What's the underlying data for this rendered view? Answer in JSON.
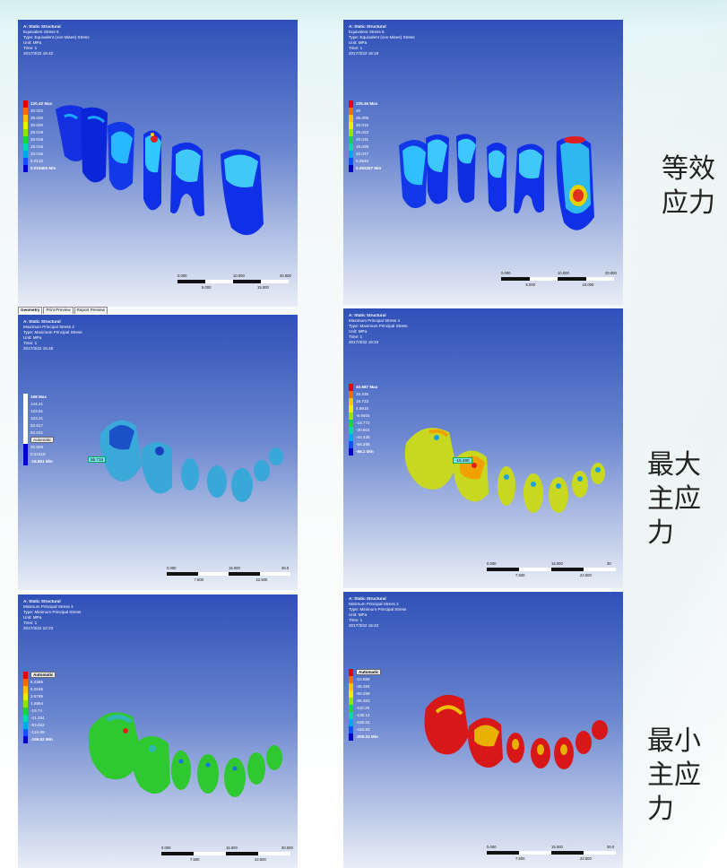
{
  "labels": {
    "row1": [
      "等效",
      "应力"
    ],
    "row2": [
      "最大",
      "主应力"
    ],
    "row3": [
      "最小",
      "主应力"
    ]
  },
  "tabs": [
    "Geometry",
    "Print Preview",
    "Report Preview"
  ],
  "panels": [
    {
      "header": [
        "A: Static Structural",
        "Equivalent Stress 6",
        "Type: Equivalent (von-Mises) Stress",
        "Unit: MPa",
        "Time: 1",
        "2017/3/22 16:42"
      ],
      "legend": [
        {
          "text": "120.42 Max",
          "color": "#e60000"
        },
        {
          "text": "40.022",
          "color": "#ff6a00"
        },
        {
          "text": "35.020",
          "color": "#ffc400"
        },
        {
          "text": "30.020",
          "color": "#e8f000"
        },
        {
          "text": "25.019",
          "color": "#8fe600"
        },
        {
          "text": "20.018",
          "color": "#20d040"
        },
        {
          "text": "15.016",
          "color": "#00d8b0"
        },
        {
          "text": "10.015",
          "color": "#00a8f0"
        },
        {
          "text": "5.0132",
          "color": "#1050ff"
        },
        {
          "text": "0.019400 Min",
          "color": "#0000c8"
        }
      ],
      "scale": [
        "0.000",
        "10.000",
        "20.000",
        "5.000",
        "15.000"
      ]
    },
    {
      "header": [
        "A: Static Structural",
        "Equivalent Stress 6",
        "Type: Equivalent (von-Mises) Stress",
        "Unit: MPa",
        "Time: 1",
        "2017/3/22 16:19"
      ],
      "legend": [
        {
          "text": "225.45 Max",
          "color": "#e60000"
        },
        {
          "text": "40",
          "color": "#ff6a00"
        },
        {
          "text": "35.008",
          "color": "#ffc400"
        },
        {
          "text": "30.016",
          "color": "#e8f000"
        },
        {
          "text": "25.023",
          "color": "#8fe600"
        },
        {
          "text": "20.031",
          "color": "#20d040"
        },
        {
          "text": "15.039",
          "color": "#00d8b0"
        },
        {
          "text": "10.047",
          "color": "#00a8f0"
        },
        {
          "text": "5.0546",
          "color": "#1050ff"
        },
        {
          "text": "0.062287 Min",
          "color": "#0000c8"
        }
      ],
      "scale": [
        "0.000",
        "10.000",
        "20.000",
        "5.000",
        "15.000"
      ]
    },
    {
      "header": [
        "A: Static Structural",
        "Maximum Principal Stress 2",
        "Type: Maximum Principal Stress",
        "Unit: MPa",
        "Time: 1",
        "2017/3/22 15:48"
      ],
      "legend": [
        {
          "text": "168 Max",
          "color": "#ffffff"
        },
        {
          "text": "144.41",
          "color": "#ffffff"
        },
        {
          "text": "123.81",
          "color": "#ffffff"
        },
        {
          "text": "103.21",
          "color": "#ffffff"
        },
        {
          "text": "82.617",
          "color": "#ffffff"
        },
        {
          "text": "62.021",
          "color": "#ffffff"
        },
        {
          "text": "Automatic",
          "color": "#ffffff"
        },
        {
          "text": "20.828",
          "color": "#0000c8"
        },
        {
          "text": "0.21519",
          "color": "#0000c8"
        },
        {
          "text": "-16.851 Min",
          "color": "#0000c8"
        }
      ],
      "probe": "56.719",
      "scale": [
        "0.000",
        "15.000",
        "30.0",
        "7.500",
        "22.500"
      ]
    },
    {
      "header": [
        "A: Static Structural",
        "Maximum Principal Stress 4",
        "Type: Maximum Principal Stress",
        "Unit: MPa",
        "Time: 1",
        "2017/3/22 16:23"
      ],
      "legend": [
        {
          "text": "40.887 Max",
          "color": "#e60000"
        },
        {
          "text": "26.335",
          "color": "#ff6a00"
        },
        {
          "text": "16.723",
          "color": "#ffc400"
        },
        {
          "text": "4.8915",
          "color": "#e8f000"
        },
        {
          "text": "-6.9404",
          "color": "#8fe600"
        },
        {
          "text": "-18.772",
          "color": "#20d040"
        },
        {
          "text": "-30.604",
          "color": "#00d8b0"
        },
        {
          "text": "-42.436",
          "color": "#00a8f0"
        },
        {
          "text": "-54.268",
          "color": "#1050ff"
        },
        {
          "text": "-66.1 Min",
          "color": "#0000c8"
        }
      ],
      "probe": "-15.490",
      "scale": [
        "0.000",
        "15.000",
        "30",
        "7.500",
        "22.500"
      ]
    },
    {
      "header": [
        "A: Static Structural",
        "Minimum Principal Stress 4",
        "Type: Minimum Principal Stress",
        "Unit: MPa",
        "Time: 1",
        "2017/3/22 22:23"
      ],
      "legend": [
        {
          "text": "Automatic",
          "color": "#e60000"
        },
        {
          "text": "6.2385",
          "color": "#ff6a00"
        },
        {
          "text": "5.0165",
          "color": "#ffc400"
        },
        {
          "text": "3.8785",
          "color": "#e8f000"
        },
        {
          "text": "1.6964",
          "color": "#8fe600"
        },
        {
          "text": "-19.74",
          "color": "#20d040"
        },
        {
          "text": "-41.254",
          "color": "#00d8b0"
        },
        {
          "text": "-93.052",
          "color": "#00a8f0"
        },
        {
          "text": "-124.89",
          "color": "#1050ff"
        },
        {
          "text": "-155.52 Min",
          "color": "#0000c8"
        }
      ],
      "scale": [
        "0.000",
        "15.000",
        "30.000",
        "7.500",
        "22.500"
      ]
    },
    {
      "header": [
        "A: Static Structural",
        "Minimum Principal Stress 2",
        "Type: Minimum Principal Stress",
        "Unit: MPa",
        "Time: 1",
        "2017/3/22 15:43"
      ],
      "legend": [
        {
          "text": "Automatic",
          "color": "#e60000"
        },
        {
          "text": "-10.869",
          "color": "#ff6a00"
        },
        {
          "text": "-35.364",
          "color": "#ffc400"
        },
        {
          "text": "-60.459",
          "color": "#e8f000"
        },
        {
          "text": "-85.353",
          "color": "#8fe600"
        },
        {
          "text": "-110.25",
          "color": "#20d040"
        },
        {
          "text": "-135.14",
          "color": "#00d8b0"
        },
        {
          "text": "-160.04",
          "color": "#00a8f0"
        },
        {
          "text": "-184.93",
          "color": "#1050ff"
        },
        {
          "text": "-209.03 Min",
          "color": "#0000c8"
        }
      ],
      "scale": [
        "0.000",
        "15.000",
        "30.0",
        "7.500",
        "22.500"
      ]
    }
  ]
}
